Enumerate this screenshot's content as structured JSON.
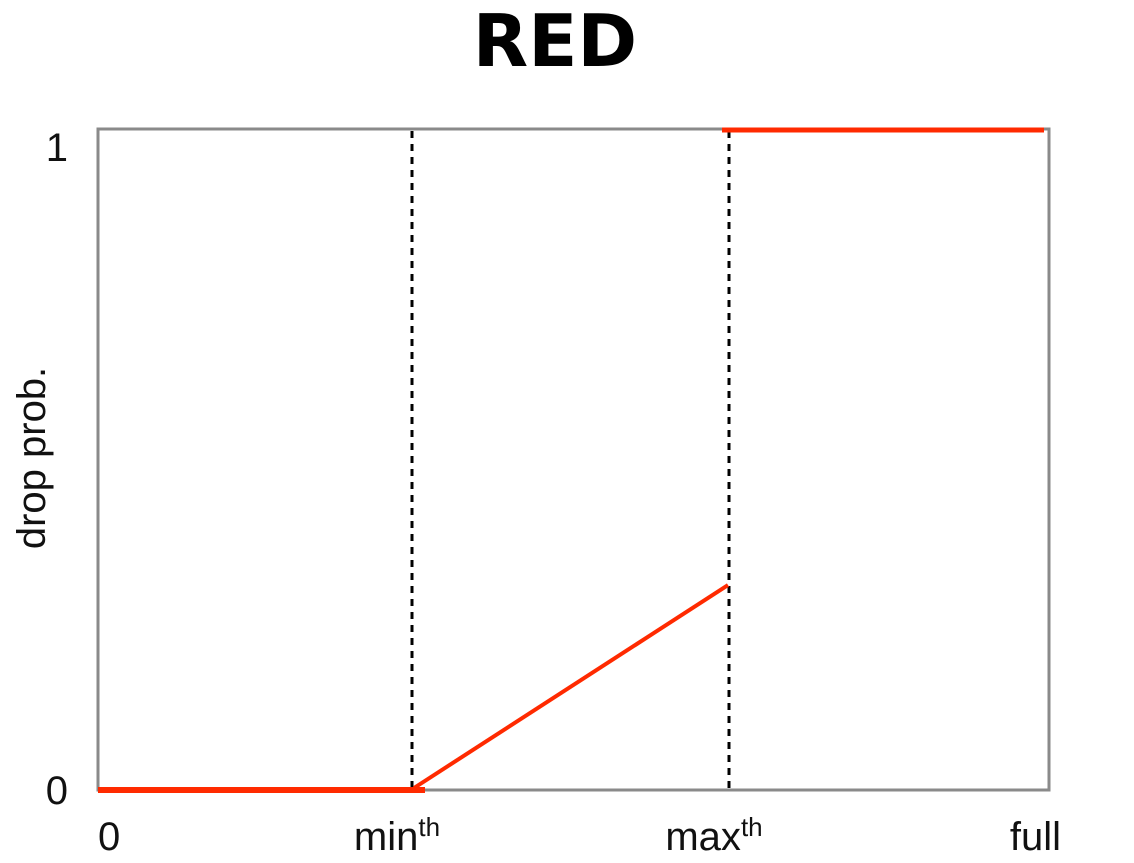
{
  "chart_data": {
    "type": "line",
    "title": "RED",
    "ylabel": "drop prob.",
    "xlabel": "",
    "x_tick_labels": [
      {
        "base": "0",
        "sup": ""
      },
      {
        "base": "min",
        "sup": "th"
      },
      {
        "base": "max",
        "sup": "th"
      },
      {
        "base": "full",
        "sup": ""
      }
    ],
    "y_tick_labels": [
      "0",
      "1"
    ],
    "xlim": [
      0,
      3
    ],
    "ylim": [
      0,
      1
    ],
    "grid": false,
    "legend": "none",
    "thresholds": [
      1,
      2
    ],
    "series": [
      {
        "segments": [
          [
            [
              0,
              0
            ],
            [
              1,
              0
            ]
          ],
          [
            [
              1,
              0
            ],
            [
              2,
              0.31
            ]
          ],
          [
            [
              2,
              1
            ],
            [
              3,
              1
            ]
          ]
        ]
      }
    ]
  },
  "colors": {
    "series": "#ff2a00",
    "frame": "#8a8a8a",
    "threshold": "#000000",
    "text": "#111111"
  }
}
